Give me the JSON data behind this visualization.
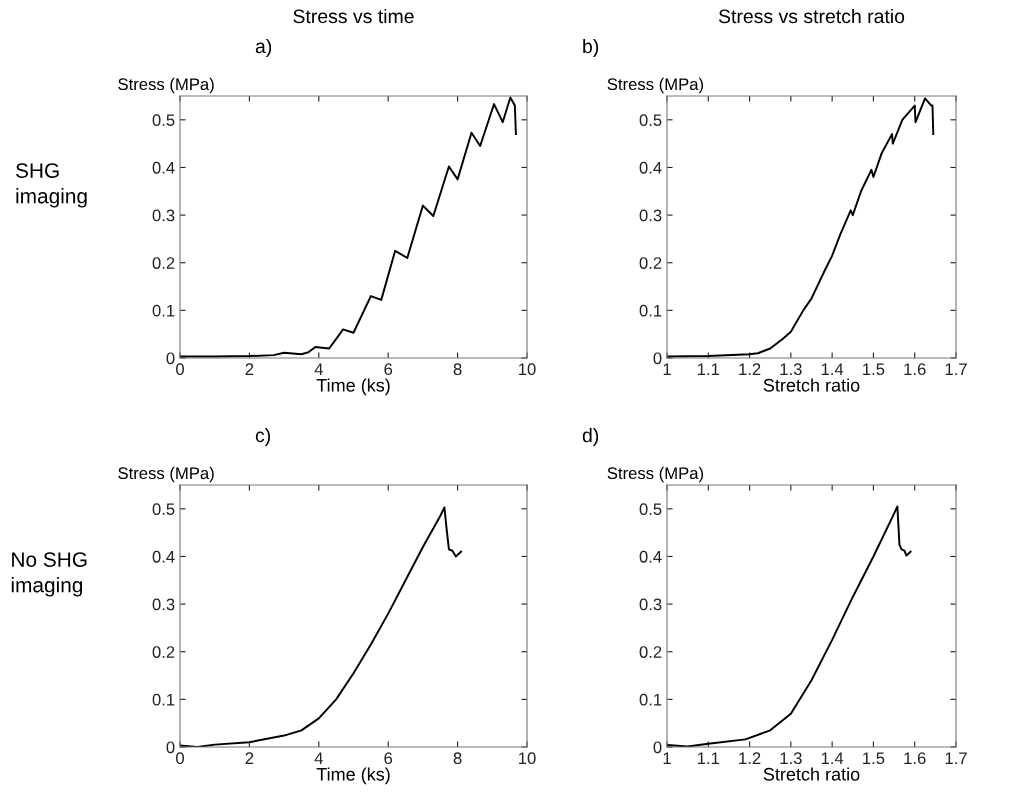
{
  "chart_data": [
    {
      "type": "line",
      "title": "Stress vs time",
      "annotations": [
        "a)",
        "SHG imaging"
      ],
      "xlabel": "Time (ks)",
      "ylabel": "Stress (MPa)",
      "xlim": [
        0,
        10
      ],
      "xticks": [
        0,
        2,
        4,
        6,
        8,
        10
      ],
      "ylim": [
        0,
        0.55
      ],
      "yticks": [
        0,
        0.1,
        0.2,
        0.3,
        0.4,
        0.5
      ],
      "grid": false,
      "series": [
        {
          "color": "#000000",
          "x": [
            0,
            1,
            2,
            2.7,
            3,
            3.5,
            3.7,
            3.9,
            4.3,
            4.7,
            5.0,
            5.5,
            5.8,
            6.2,
            6.55,
            7.0,
            7.3,
            7.75,
            8.0,
            8.4,
            8.65,
            8.9,
            9.05,
            9.3,
            9.52,
            9.65,
            9.68
          ],
          "values": [
            0.003,
            0.003,
            0.004,
            0.006,
            0.011,
            0.008,
            0.012,
            0.023,
            0.02,
            0.06,
            0.053,
            0.13,
            0.122,
            0.225,
            0.21,
            0.32,
            0.298,
            0.402,
            0.375,
            0.473,
            0.445,
            0.5,
            0.533,
            0.495,
            0.547,
            0.53,
            0.47
          ]
        }
      ]
    },
    {
      "type": "line",
      "title": "Stress vs stretch ratio",
      "annotations": [
        "b)"
      ],
      "xlabel": "Stretch ratio",
      "ylabel": "Stress (MPa)",
      "xlim": [
        1,
        1.7
      ],
      "xticks": [
        1,
        1.1,
        1.2,
        1.3,
        1.4,
        1.5,
        1.6,
        1.7
      ],
      "ylim": [
        0,
        0.55
      ],
      "yticks": [
        0,
        0.1,
        0.2,
        0.3,
        0.4,
        0.5
      ],
      "grid": false,
      "series": [
        {
          "color": "#000000",
          "x": [
            1,
            1.1,
            1.2,
            1.22,
            1.25,
            1.28,
            1.3,
            1.33,
            1.35,
            1.38,
            1.4,
            1.42,
            1.445,
            1.45,
            1.47,
            1.495,
            1.5,
            1.52,
            1.545,
            1.547,
            1.57,
            1.6,
            1.602,
            1.625,
            1.64,
            1.643,
            1.645
          ],
          "values": [
            0.003,
            0.004,
            0.008,
            0.01,
            0.02,
            0.04,
            0.055,
            0.1,
            0.125,
            0.18,
            0.215,
            0.26,
            0.31,
            0.3,
            0.35,
            0.395,
            0.38,
            0.43,
            0.47,
            0.45,
            0.5,
            0.53,
            0.495,
            0.545,
            0.53,
            0.53,
            0.47
          ]
        }
      ]
    },
    {
      "type": "line",
      "annotations": [
        "c)",
        "No SHG imaging"
      ],
      "xlabel": "Time (ks)",
      "ylabel": "Stress (MPa)",
      "xlim": [
        0,
        10
      ],
      "xticks": [
        0,
        2,
        4,
        6,
        8,
        10
      ],
      "ylim": [
        0,
        0.55
      ],
      "yticks": [
        0,
        0.1,
        0.2,
        0.3,
        0.4,
        0.5
      ],
      "grid": false,
      "series": [
        {
          "color": "#000000",
          "x": [
            0,
            0.5,
            1,
            2,
            3,
            3.5,
            4,
            4.5,
            5,
            5.5,
            6,
            6.5,
            7,
            7.5,
            7.62,
            7.68,
            7.75,
            7.85,
            7.95,
            8.1
          ],
          "values": [
            0.003,
            0.0,
            0.005,
            0.01,
            0.024,
            0.035,
            0.06,
            0.1,
            0.155,
            0.215,
            0.28,
            0.35,
            0.42,
            0.485,
            0.503,
            0.46,
            0.415,
            0.412,
            0.4,
            0.41
          ]
        }
      ]
    },
    {
      "type": "line",
      "annotations": [
        "d)"
      ],
      "xlabel": "Stretch ratio",
      "ylabel": "Stress (MPa)",
      "xlim": [
        1,
        1.7
      ],
      "xticks": [
        1,
        1.1,
        1.2,
        1.3,
        1.4,
        1.5,
        1.6,
        1.7
      ],
      "ylim": [
        0,
        0.55
      ],
      "yticks": [
        0,
        0.1,
        0.2,
        0.3,
        0.4,
        0.5
      ],
      "grid": false,
      "series": [
        {
          "color": "#000000",
          "x": [
            1,
            1.05,
            1.1,
            1.19,
            1.25,
            1.3,
            1.35,
            1.4,
            1.45,
            1.5,
            1.55,
            1.558,
            1.563,
            1.568,
            1.575,
            1.58,
            1.59
          ],
          "values": [
            0.004,
            0.001,
            0.007,
            0.016,
            0.035,
            0.07,
            0.14,
            0.225,
            0.315,
            0.4,
            0.49,
            0.505,
            0.425,
            0.415,
            0.412,
            0.402,
            0.41
          ]
        }
      ]
    }
  ]
}
